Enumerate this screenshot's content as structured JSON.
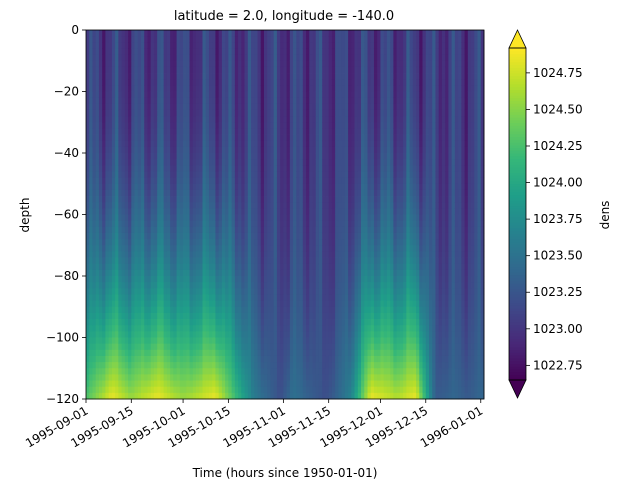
{
  "chart_data": {
    "type": "heatmap",
    "title": "latitude = 2.0, longitude = -140.0",
    "xlabel": "Time (hours since 1950-01-01)",
    "ylabel": "depth",
    "ylim": [
      -120,
      0
    ],
    "y_ticks": [
      0,
      -20,
      -40,
      -60,
      -80,
      -100,
      -120
    ],
    "y_tick_labels": [
      "0",
      "−20",
      "−40",
      "−60",
      "−80",
      "−100",
      "−120"
    ],
    "x_range": [
      "1995-09-01",
      "1996-01-02"
    ],
    "x_ticks": [
      "1995-09-01",
      "1995-09-15",
      "1995-10-01",
      "1995-10-15",
      "1995-11-01",
      "1995-11-15",
      "1995-12-01",
      "1995-12-15",
      "1996-01-01"
    ],
    "colormap": "viridis",
    "colorbar": {
      "label": "dens",
      "vmin": 1022.65,
      "vmax": 1024.92,
      "ticks": [
        1022.75,
        1023.0,
        1023.25,
        1023.5,
        1023.75,
        1024.0,
        1024.25,
        1024.5,
        1024.75
      ],
      "tick_labels": [
        "1022.75",
        "1023.00",
        "1023.25",
        "1023.50",
        "1023.75",
        "1024.00",
        "1024.25",
        "1024.50",
        "1024.75"
      ],
      "extend": "both"
    },
    "depth_bottom_days": [
      0,
      8,
      14,
      22,
      30,
      40,
      52,
      56,
      60,
      64,
      74,
      78,
      82,
      88,
      96,
      102,
      108,
      114,
      118,
      122
    ],
    "depth_bottom_values": [
      1024.3,
      1024.9,
      1024.6,
      1024.9,
      1024.6,
      1024.9,
      1023.6,
      1023.4,
      1023.2,
      1023.5,
      1023.2,
      1023.4,
      1023.7,
      1024.9,
      1024.7,
      1024.9,
      1023.3,
      1023.4,
      1023.3,
      1023.4
    ]
  },
  "colors": {
    "viridis": [
      "#440154",
      "#482878",
      "#3e4989",
      "#31688e",
      "#26828e",
      "#1f9e89",
      "#35b779",
      "#6ece58",
      "#b5de2b",
      "#fde725"
    ]
  }
}
